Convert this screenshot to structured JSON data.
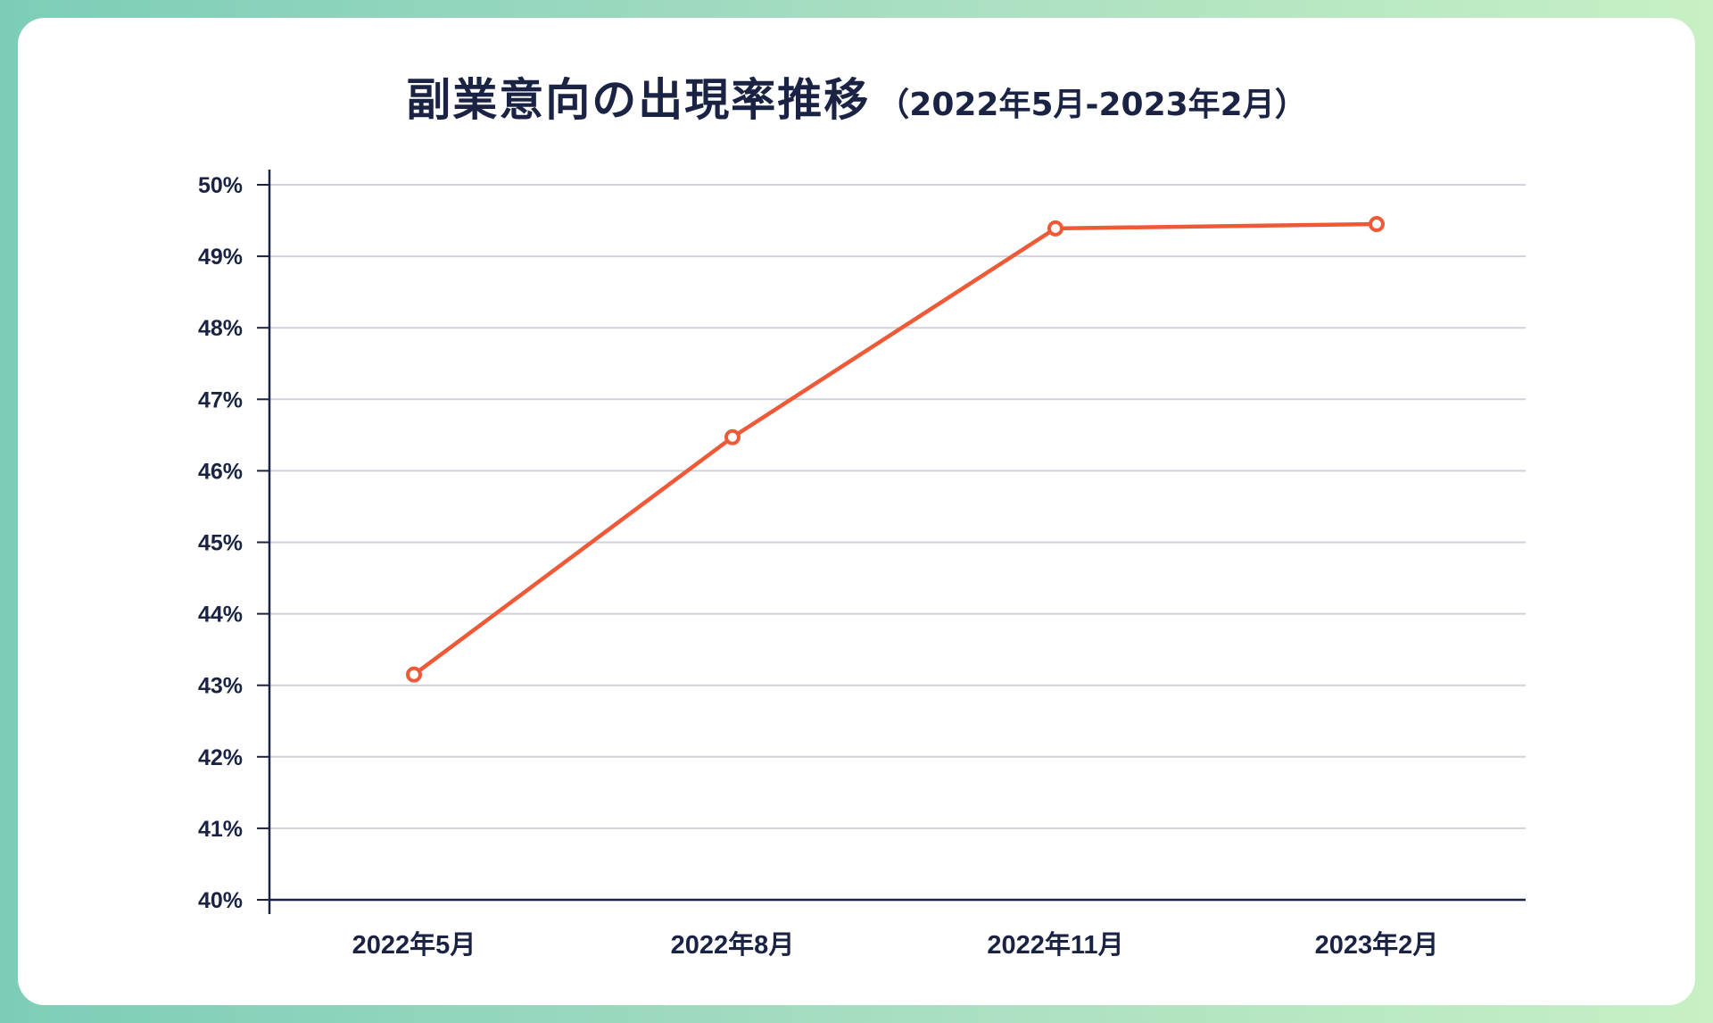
{
  "chart_data": {
    "type": "line",
    "title": "副業意向の出現率推移",
    "subtitle": "（2022年5月-2023年2月）",
    "categories": [
      "2022年5月",
      "2022年8月",
      "2022年11月",
      "2023年2月"
    ],
    "values": [
      43.15,
      46.47,
      49.39,
      49.45
    ],
    "ylim": [
      40,
      50
    ],
    "yticks": [
      "40%",
      "41%",
      "42%",
      "43%",
      "44%",
      "45%",
      "46%",
      "47%",
      "48%",
      "49%",
      "50%"
    ],
    "grid": true,
    "line_color": "#ee5a38"
  }
}
